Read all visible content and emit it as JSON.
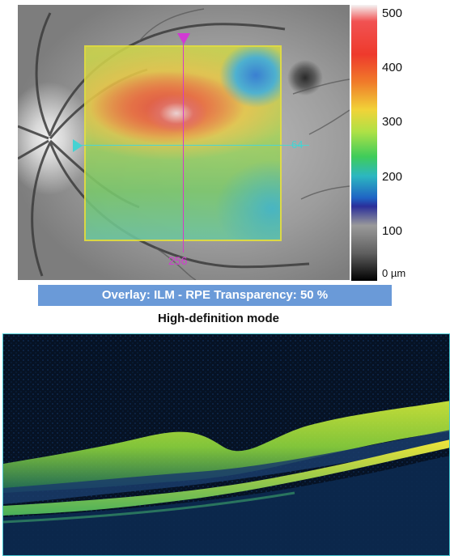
{
  "fundus": {
    "scan_marker_vertical": "256",
    "scan_marker_horizontal": "64"
  },
  "color_scale": {
    "ticks": [
      "500",
      "400",
      "300",
      "200",
      "100",
      "0 µm"
    ],
    "values_um": [
      500,
      400,
      300,
      200,
      100,
      0
    ]
  },
  "overlay_bar": {
    "text": "Overlay: ILM - RPE  Transparency: 50 %"
  },
  "oct": {
    "title": "High-definition mode"
  },
  "colors": {
    "horizontal_scan_line": "#45d2d2",
    "vertical_scan_line": "#d33ad1",
    "map_border": "#e6e23a",
    "overlay_bar_bg": "#6a9ad8",
    "oct_background": "#061224"
  }
}
